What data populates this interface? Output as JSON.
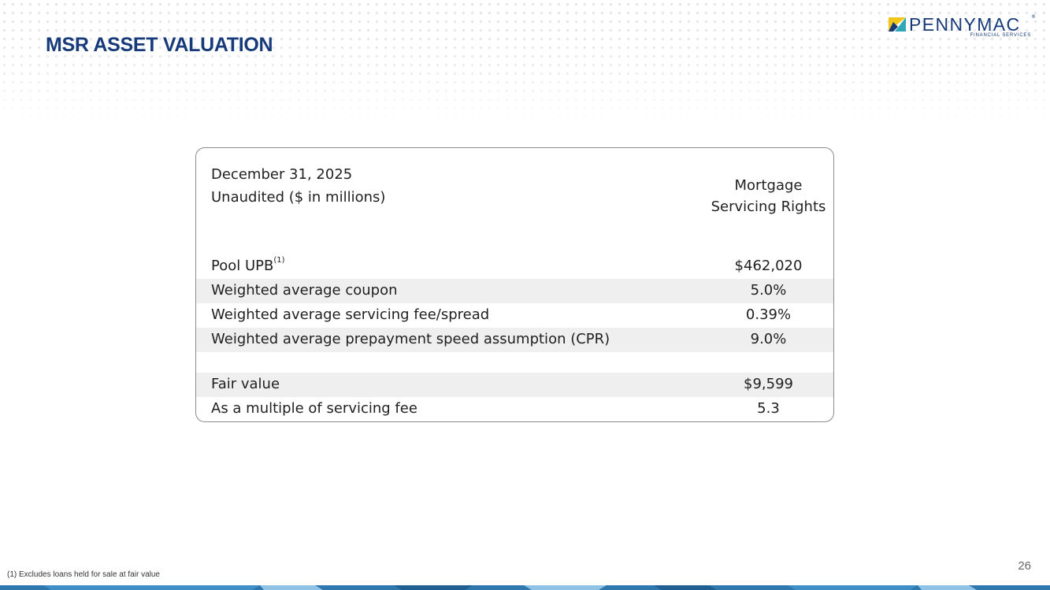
{
  "header": {
    "title": "MSR ASSET VALUATION",
    "logo_name": "PENNYMAC",
    "logo_subtitle": "FINANCIAL SERVICES",
    "logo_trademark": "®"
  },
  "table": {
    "date": "December 31, 2025",
    "unit_note": "Unaudited ($ in millions)",
    "column_header_line1": "Mortgage",
    "column_header_line2": "Servicing Rights",
    "rows": [
      {
        "label": "Pool UPB",
        "footnote_ref": "(1)",
        "value": "$462,020"
      },
      {
        "label": "Weighted average coupon",
        "value": "5.0%"
      },
      {
        "label": "Weighted average servicing fee/spread",
        "value": "0.39%"
      },
      {
        "label": "Weighted average prepayment speed assumption (CPR)",
        "value": "9.0%"
      },
      {
        "label": "Fair value",
        "value": "$9,599"
      },
      {
        "label": "As a multiple of servicing fee",
        "value": "5.3"
      }
    ]
  },
  "footer": {
    "footnote": "(1) Excludes loans held for sale at fair value",
    "page_number": "26"
  },
  "colors": {
    "brand_navy": "#163a7a",
    "logo_yellow": "#f2c618",
    "logo_teal": "#2fa7b8",
    "row_shade": "#efefef",
    "bar_blue": "#2f78ad",
    "bar_light": "#8ec3e6"
  }
}
